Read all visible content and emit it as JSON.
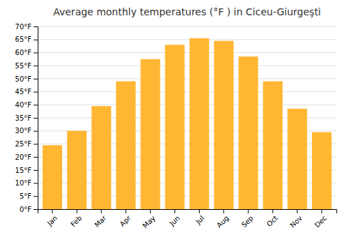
{
  "chart_data": {
    "type": "bar",
    "title": "Average monthly temperatures (°F ) in Ciceu-Giurgeşti",
    "categories": [
      "Jan",
      "Feb",
      "Mar",
      "Apr",
      "May",
      "Jun",
      "Jul",
      "Aug",
      "Sep",
      "Oct",
      "Nov",
      "Dec"
    ],
    "values": [
      24.5,
      30.0,
      39.5,
      49.0,
      57.5,
      63.0,
      65.5,
      64.5,
      58.5,
      49.0,
      38.5,
      29.5
    ],
    "color": "#FFB733",
    "ylim": [
      0,
      70
    ],
    "yticks": [
      {
        "value": 0,
        "label": "0°F"
      },
      {
        "value": 5,
        "label": "5°F"
      },
      {
        "value": 10,
        "label": "10°F"
      },
      {
        "value": 15,
        "label": "15°F"
      },
      {
        "value": 20,
        "label": "20°F"
      },
      {
        "value": 25,
        "label": "25°F"
      },
      {
        "value": 30,
        "label": "30°F"
      },
      {
        "value": 35,
        "label": "35°F"
      },
      {
        "value": 40,
        "label": "40°F"
      },
      {
        "value": 45,
        "label": "45°F"
      },
      {
        "value": 50,
        "label": "50°F"
      },
      {
        "value": 55,
        "label": "55°F"
      },
      {
        "value": 60,
        "label": "60°F"
      },
      {
        "value": 65,
        "label": "65°F"
      },
      {
        "value": 70,
        "label": "70°F"
      }
    ],
    "grid": true
  }
}
